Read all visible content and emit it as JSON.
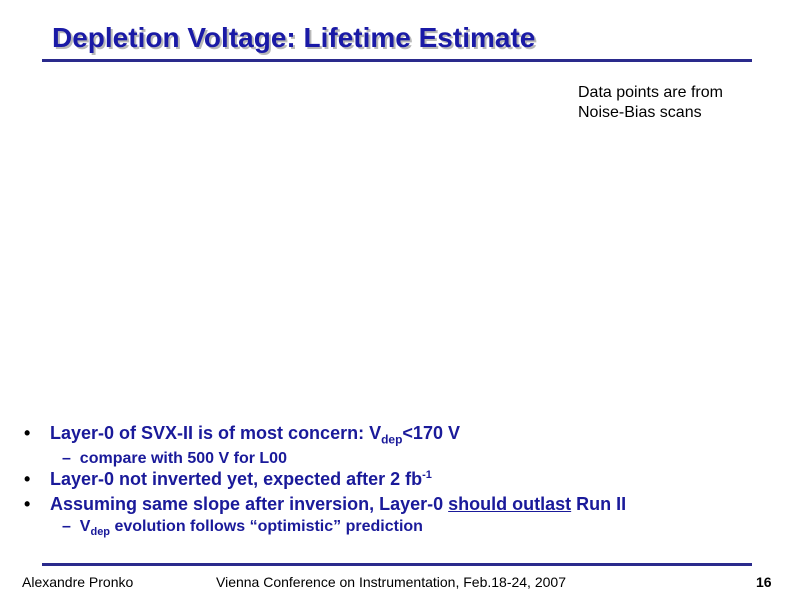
{
  "title": "Depletion Voltage: Lifetime Estimate",
  "note": {
    "line1": "Data points are from",
    "line2": "Noise-Bias scans"
  },
  "bullets": {
    "b1": {
      "symbol": "•",
      "pre": "Layer-0 of SVX-II is of most concern: V",
      "sub": "dep",
      "post": "<170 V"
    },
    "b1_sub": {
      "dash": "–",
      "text": "compare with 500 V for L00"
    },
    "b2": {
      "symbol": "•",
      "pre": "Layer-0 not inverted yet, expected after 2 fb",
      "sup": "-1"
    },
    "b3": {
      "symbol": "•",
      "pre": "Assuming same slope after inversion, Layer-0 ",
      "underlined": "should outlast",
      "post": " Run II"
    },
    "b3_sub": {
      "dash": "–",
      "pre": "V",
      "sub": "dep",
      "post": " evolution follows “optimistic” prediction"
    }
  },
  "footer": {
    "author": "Alexandre Pronko",
    "conference": "Vienna Conference on Instrumentation, Feb.18-24, 2007",
    "page": "16"
  }
}
